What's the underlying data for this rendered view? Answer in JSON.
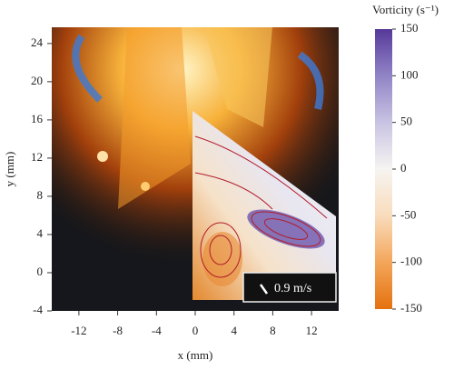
{
  "chart_data": {
    "type": "image",
    "xlabel": "x (mm)",
    "ylabel": "y (mm)",
    "xlim": [
      -14.8,
      14.8
    ],
    "xticks": [
      -12,
      -8,
      -4,
      0,
      4,
      8,
      12
    ],
    "ylim": [
      -4,
      25.7
    ],
    "yticks": [
      -4,
      0,
      4,
      8,
      12,
      16,
      20,
      24
    ],
    "annotation": "0.9 m/s",
    "colorbar": {
      "label": "Vorticity (s⁻¹)",
      "clim": [
        -150,
        150
      ],
      "ticks": [
        -150,
        -100,
        -50,
        0,
        50,
        100,
        150
      ],
      "colors": [
        "#e4710f",
        "#f3a65a",
        "#f9dcbc",
        "#f6f4f1",
        "#c9c3e3",
        "#9184c6",
        "#56399a"
      ]
    }
  }
}
